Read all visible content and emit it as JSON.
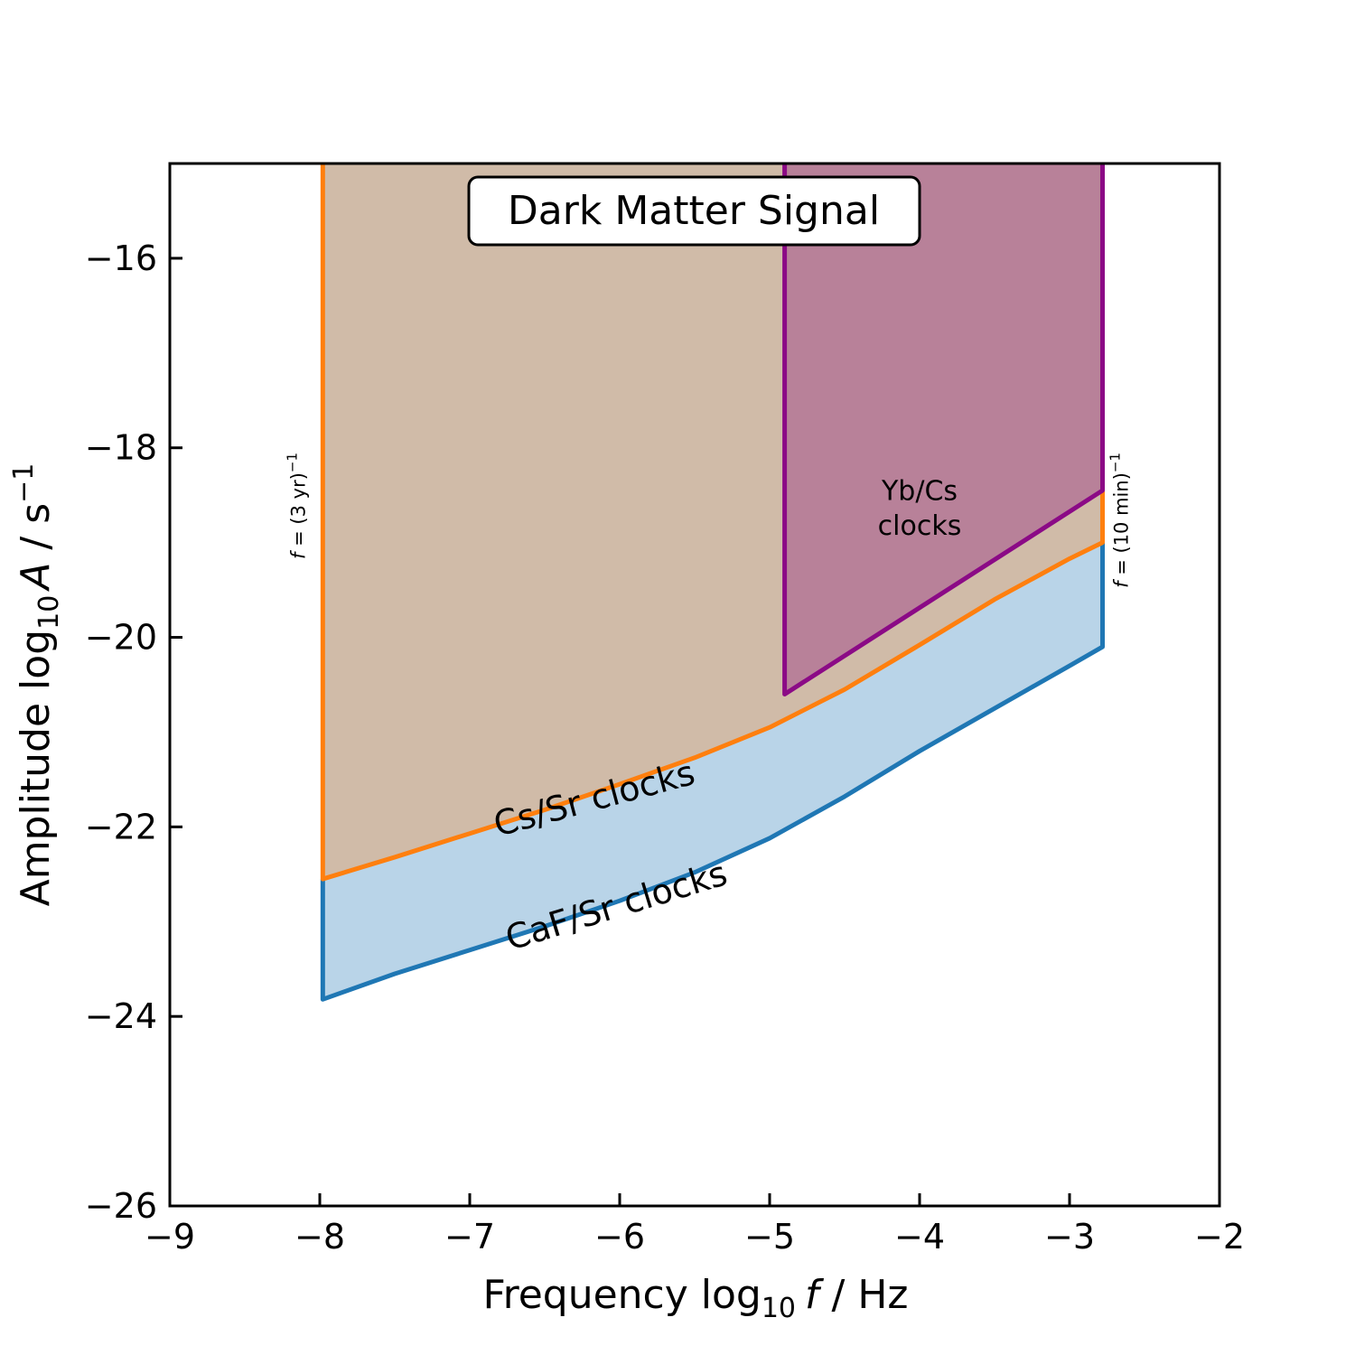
{
  "chart_data": {
    "type": "area",
    "title": "Dark Matter Signal",
    "xlabel": {
      "prefix": "Frequency log",
      "sub": "10",
      "italic": "f",
      "suffix": " / Hz"
    },
    "ylabel": {
      "prefix": "Amplitude log",
      "sub": "10",
      "italic": "A",
      "suffix": " / s",
      "sup": "−1"
    },
    "xlim": [
      -9,
      -2
    ],
    "ylim": [
      -26,
      -15
    ],
    "xticks": [
      -9,
      -8,
      -7,
      -6,
      -5,
      -4,
      -3,
      -2
    ],
    "yticks": [
      -26,
      -24,
      -22,
      -20,
      -18,
      -16
    ],
    "xtick_labels": [
      "−9",
      "−8",
      "−7",
      "−6",
      "−5",
      "−4",
      "−3",
      "−2"
    ],
    "ytick_labels": [
      "−26",
      "−24",
      "−22",
      "−20",
      "−18",
      "−16"
    ],
    "grid": false,
    "series": [
      {
        "name": "CaF/Sr clocks",
        "color": "#1f77b4",
        "fill": "#b9d4e8",
        "x": [
          -7.98,
          -7.5,
          -7.0,
          -6.5,
          -6.0,
          -5.5,
          -5.0,
          -4.5,
          -4.0,
          -3.5,
          -3.0,
          -2.78
        ],
        "y": [
          -23.82,
          -23.55,
          -23.3,
          -23.05,
          -22.78,
          -22.48,
          -22.12,
          -21.68,
          -21.2,
          -20.75,
          -20.3,
          -20.1
        ]
      },
      {
        "name": "Cs/Sr clocks",
        "color": "#ff7f0e",
        "fill": "#d0bba8",
        "x": [
          -7.98,
          -7.5,
          -7.0,
          -6.5,
          -6.0,
          -5.5,
          -5.0,
          -4.5,
          -4.0,
          -3.5,
          -3.0,
          -2.78
        ],
        "y": [
          -22.55,
          -22.32,
          -22.07,
          -21.82,
          -21.55,
          -21.27,
          -20.95,
          -20.55,
          -20.08,
          -19.6,
          -19.17,
          -19.0
        ]
      },
      {
        "name": "Yb/Cs\nclocks",
        "color": "#8b0a86",
        "fill": "#b88199",
        "x": [
          -4.9,
          -2.78
        ],
        "y": [
          -20.6,
          -18.45
        ]
      }
    ],
    "annotations": [
      {
        "text": "CaF/Sr clocks",
        "x": -6.0,
        "y": -22.95,
        "rotation": -17
      },
      {
        "text": "Cs/Sr clocks",
        "x": -6.15,
        "y": -21.82,
        "rotation": -15
      },
      {
        "text": "Yb/Cs",
        "x": -4.0,
        "y": -18.55
      },
      {
        "text": "clocks",
        "x": -4.0,
        "y": -18.92
      },
      {
        "text": "f = (3 yr)⁻¹",
        "x": -8.1,
        "y": -17.3,
        "rotation": -90
      },
      {
        "text": "f = (10 min)⁻¹",
        "x": -2.61,
        "y": -17.3,
        "rotation": -90
      }
    ],
    "vlines": [
      {
        "label_italic": "f",
        "label_rest": " = (3 yr)",
        "label_sup": "−1",
        "x": -7.98
      },
      {
        "label_italic": "f",
        "label_rest": " = (10 min)",
        "label_sup": "−1",
        "x": -2.78
      }
    ]
  }
}
